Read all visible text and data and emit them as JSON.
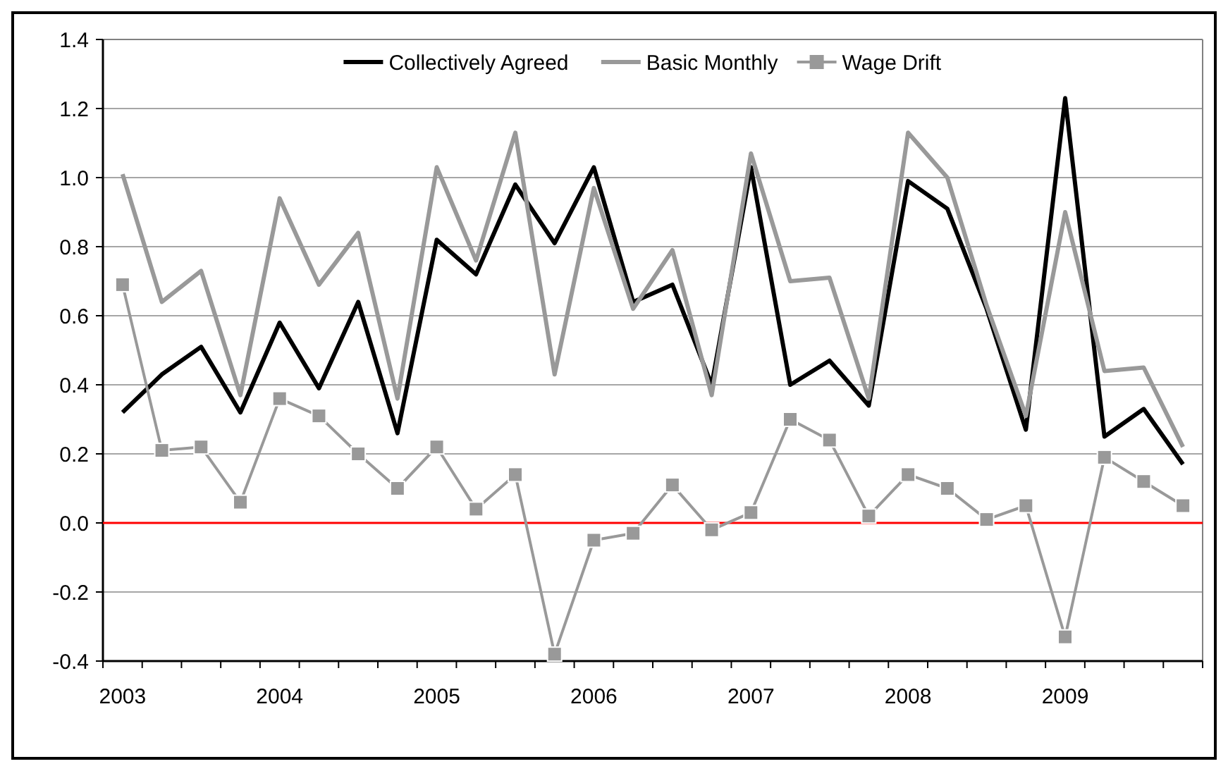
{
  "chart_data": {
    "type": "line",
    "categories": [
      "2003",
      null,
      null,
      null,
      "2004",
      null,
      null,
      null,
      "2005",
      null,
      null,
      null,
      "2006",
      null,
      null,
      null,
      "2007",
      null,
      null,
      null,
      "2008",
      null,
      null,
      null,
      "2009",
      null,
      null,
      null
    ],
    "series": [
      {
        "name": "Collectively Agreed",
        "color": "#000000",
        "marker": "none",
        "values": [
          0.32,
          0.43,
          0.51,
          0.32,
          0.58,
          0.39,
          0.64,
          0.26,
          0.82,
          0.72,
          0.98,
          0.81,
          1.03,
          0.64,
          0.69,
          0.4,
          1.03,
          0.4,
          0.47,
          0.34,
          0.99,
          0.91,
          0.62,
          0.27,
          1.23,
          0.25,
          0.33,
          0.17
        ]
      },
      {
        "name": "Basic Monthly",
        "color": "#999999",
        "marker": "none",
        "values": [
          1.01,
          0.64,
          0.73,
          0.37,
          0.94,
          0.69,
          0.84,
          0.36,
          1.03,
          0.76,
          1.13,
          0.43,
          0.97,
          0.62,
          0.79,
          0.37,
          1.07,
          0.7,
          0.71,
          0.36,
          1.13,
          1.0,
          0.63,
          0.31,
          0.9,
          0.44,
          0.45,
          0.22
        ]
      },
      {
        "name": "Wage Drift",
        "color": "#999999",
        "marker": "square",
        "values": [
          0.69,
          0.21,
          0.22,
          0.06,
          0.36,
          0.31,
          0.2,
          0.1,
          0.22,
          0.04,
          0.14,
          -0.38,
          -0.05,
          -0.03,
          0.11,
          -0.02,
          0.03,
          0.3,
          0.24,
          0.02,
          0.14,
          0.1,
          0.01,
          0.05,
          -0.33,
          0.19,
          0.12,
          0.05
        ]
      }
    ],
    "ylim": [
      -0.4,
      1.4
    ],
    "yticks": [
      {
        "value": -0.4,
        "label": "-0.4"
      },
      {
        "value": -0.2,
        "label": "-0.2"
      },
      {
        "value": 0,
        "label": "0.0"
      },
      {
        "value": 0.2,
        "label": "0.2"
      },
      {
        "value": 0.4,
        "label": "0.4"
      },
      {
        "value": 0.6,
        "label": "0.6"
      },
      {
        "value": 0.8,
        "label": "0.8"
      },
      {
        "value": 1,
        "label": "1.0"
      },
      {
        "value": 1.2,
        "label": "1.2"
      },
      {
        "value": 1.4,
        "label": "1.4"
      }
    ],
    "grid": "y",
    "legend": "top",
    "ref_lines": [
      {
        "axis": "y",
        "value": 0,
        "color": "#ff0000"
      }
    ]
  }
}
